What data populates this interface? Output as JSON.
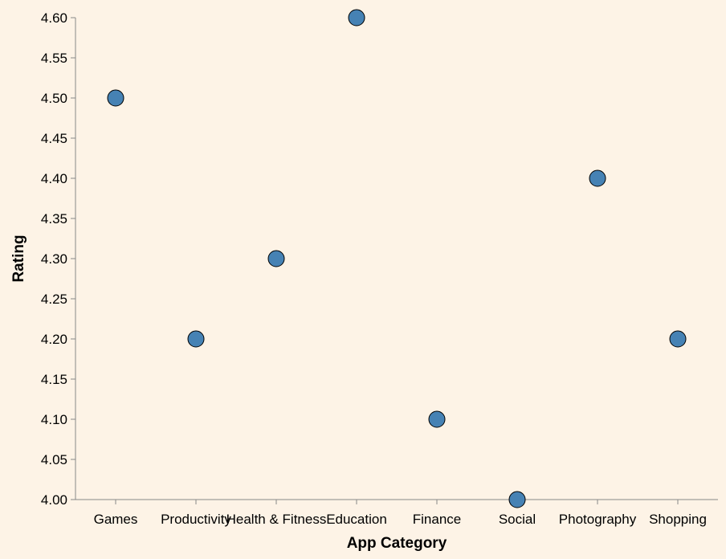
{
  "chart_data": {
    "type": "scatter",
    "xlabel": "App Category",
    "ylabel": "Rating",
    "categories": [
      "Games",
      "Productivity",
      "Health & Fitness",
      "Education",
      "Finance",
      "Social",
      "Photography",
      "Shopping"
    ],
    "values": [
      4.5,
      4.2,
      4.3,
      4.6,
      4.1,
      4.0,
      4.4,
      4.2
    ],
    "ylim": [
      4.0,
      4.6
    ],
    "yticks": [
      "4.00",
      "4.05",
      "4.10",
      "4.15",
      "4.20",
      "4.25",
      "4.30",
      "4.35",
      "4.40",
      "4.45",
      "4.50",
      "4.55",
      "4.60"
    ],
    "grid": false,
    "legend": "none",
    "colors": {
      "background": "#fdf3e6",
      "point_fill": "#4682b4",
      "point_stroke": "#000000",
      "axis": "#888888"
    }
  }
}
